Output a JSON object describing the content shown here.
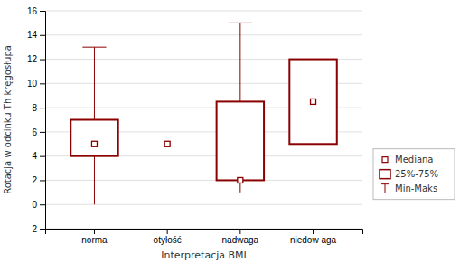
{
  "chart_data": {
    "type": "box",
    "xlabel": "Interpretacja BMI",
    "ylabel": "Rotacja w odcinku Th kręgosłupa",
    "categories": [
      "norma",
      "otyłość",
      "nadwaga",
      "niedow aga"
    ],
    "boxes": [
      {
        "median": 5,
        "q1": 4,
        "q3": 7,
        "whislo": 0,
        "whishi": 13
      },
      {
        "median": 5,
        "q1": 5,
        "q3": 5,
        "whislo": 5,
        "whishi": 5
      },
      {
        "median": 2,
        "q1": 2,
        "q3": 8.5,
        "whislo": 1,
        "whishi": 15
      },
      {
        "median": 8.5,
        "q1": 5,
        "q3": 12,
        "whislo": 5,
        "whishi": 12
      }
    ],
    "legend_labels": [
      "Mediana",
      "25%-75%",
      "Min-Maks"
    ],
    "color": "#8B0000",
    "ylim": [
      -2,
      16
    ],
    "yticks": [
      -2,
      0,
      2,
      4,
      6,
      8,
      10,
      12,
      14,
      16
    ],
    "grid": true,
    "legend": "right"
  }
}
